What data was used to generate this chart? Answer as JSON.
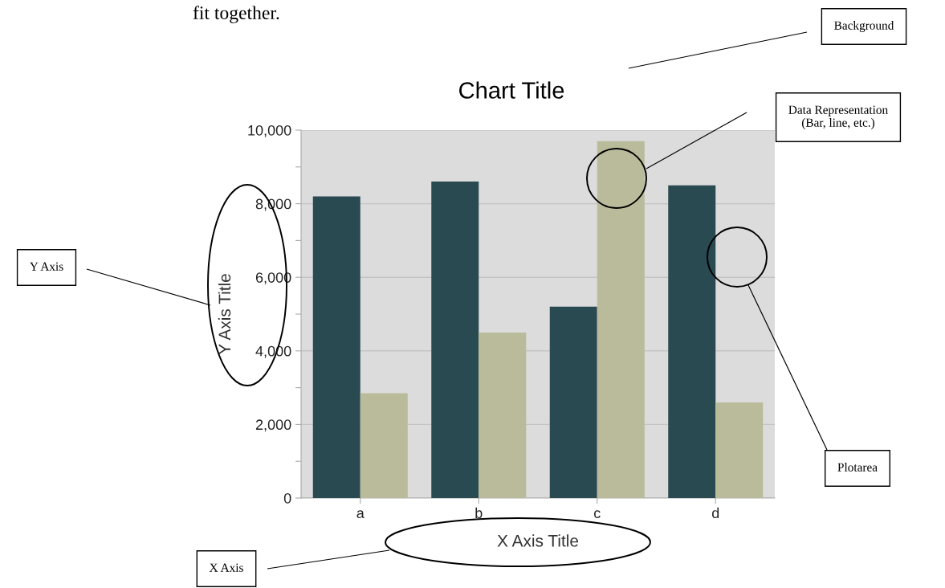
{
  "chart_data": {
    "type": "bar",
    "title": "Chart Title",
    "xlabel": "X Axis Title",
    "ylabel": "Y Axis Title",
    "categories": [
      "a",
      "b",
      "c",
      "d"
    ],
    "series": [
      {
        "color": "#2a4a52",
        "values": [
          8200,
          8600,
          5200,
          8500
        ]
      },
      {
        "color": "#b9bb9a",
        "values": [
          2850,
          4500,
          9700,
          2600
        ]
      }
    ],
    "ylim": [
      0,
      10000
    ],
    "yticks": [
      0,
      {
        "value": 1000,
        "label": null
      },
      {
        "value": 2000,
        "label": "2,000"
      },
      {
        "value": 3000,
        "label": null
      },
      {
        "value": 4000,
        "label": "4,000"
      },
      {
        "value": 5000,
        "label": null
      },
      {
        "value": 6000,
        "label": "6,000"
      },
      {
        "value": 7000,
        "label": null
      },
      {
        "value": 8000,
        "label": "8,000"
      },
      {
        "value": 9000,
        "label": null
      },
      {
        "value": 10000,
        "label": "10,000"
      }
    ],
    "grid": "y",
    "annotations": [
      "fit together.",
      "Background",
      "Data Representation\n(Bar, line, etc.)",
      "Y Axis",
      "Plotarea",
      "X Axis"
    ]
  }
}
